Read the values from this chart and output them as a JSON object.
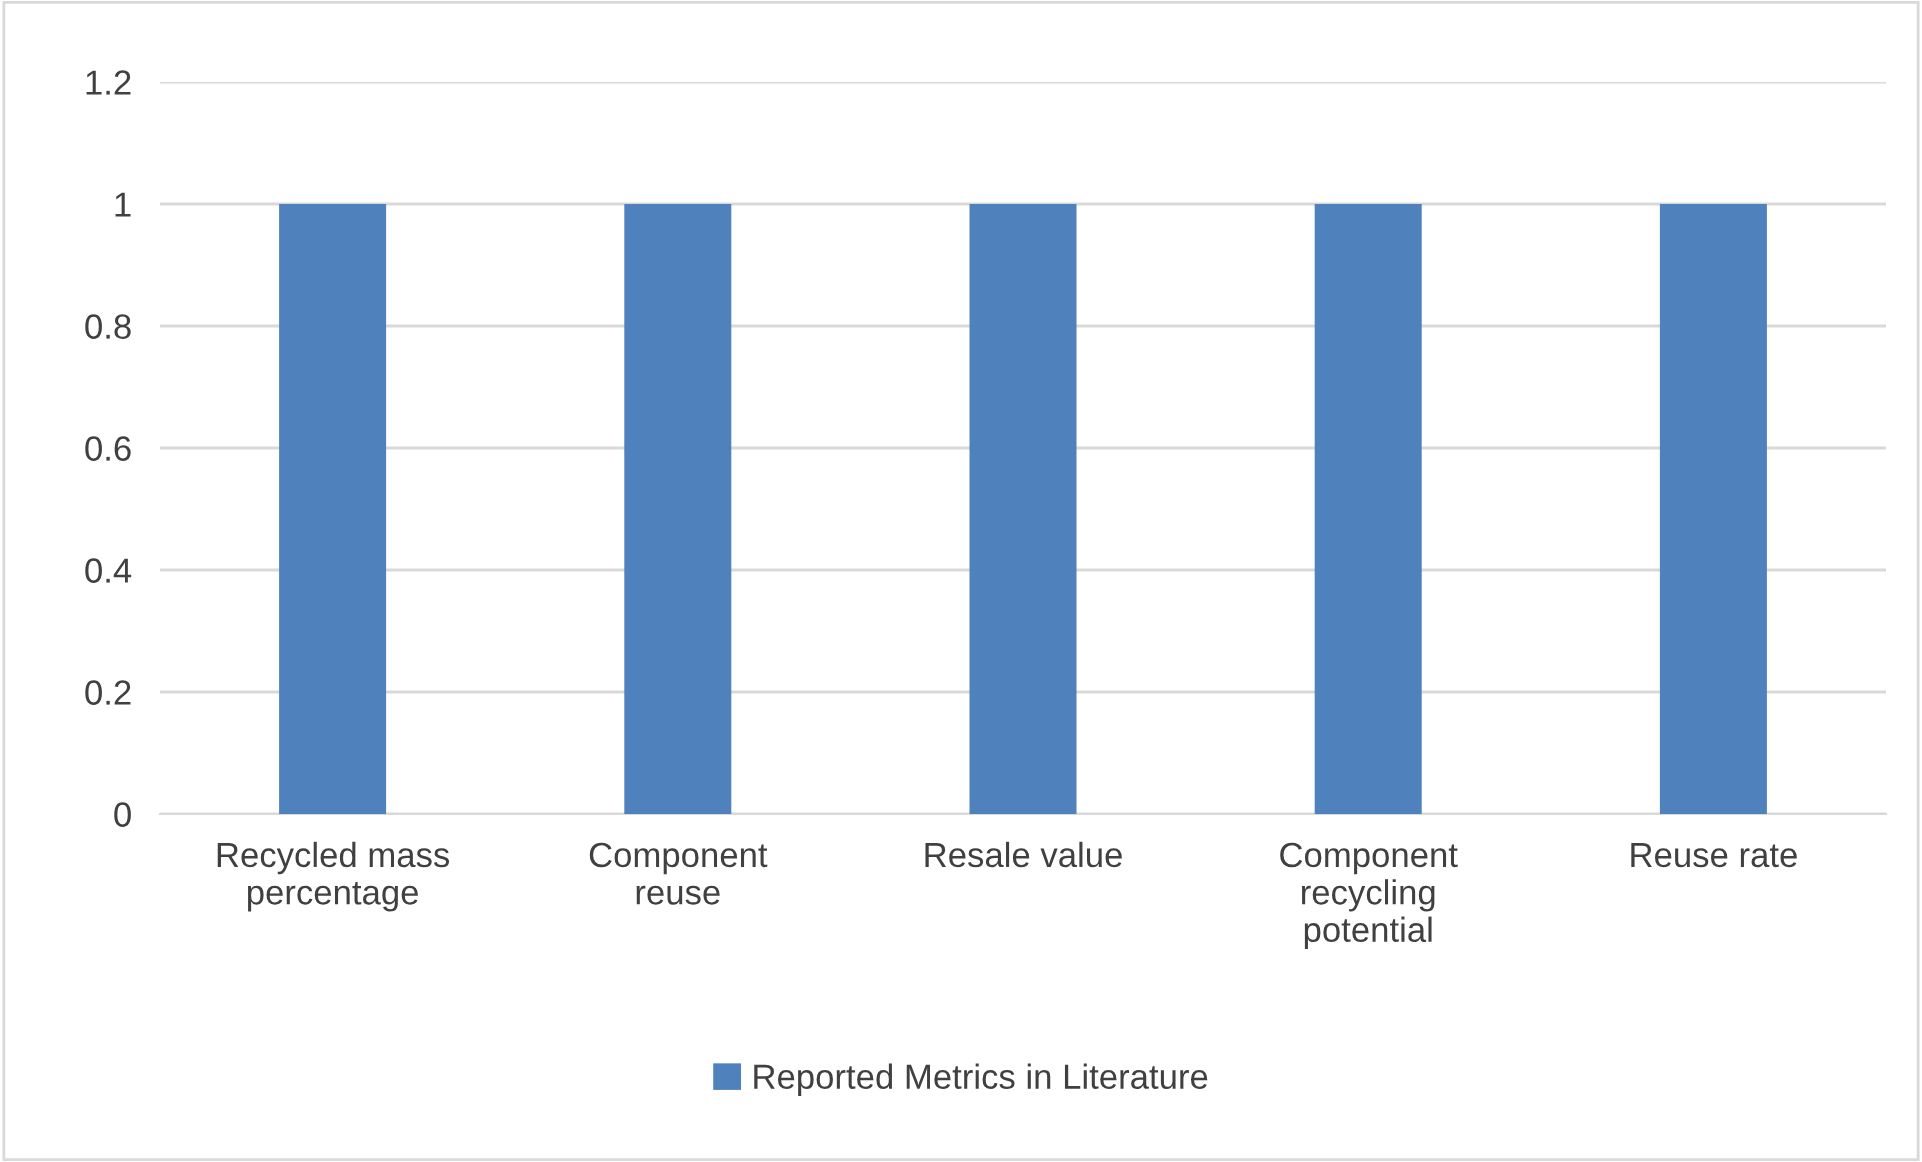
{
  "chart_data": {
    "type": "bar",
    "categories": [
      "Recycled mass percentage",
      "Component reuse",
      "Resale value",
      "Component recycling potential",
      "Reuse rate"
    ],
    "series": [
      {
        "name": "Reported Metrics in Literature",
        "color": "#4f81bd",
        "values": [
          1,
          1,
          1,
          1,
          1
        ]
      }
    ],
    "ylim": [
      0,
      1.2
    ],
    "yticks": [
      0,
      0.2,
      0.4,
      0.6,
      0.8,
      1,
      1.2
    ],
    "grid": "y",
    "legend": "bottom"
  }
}
